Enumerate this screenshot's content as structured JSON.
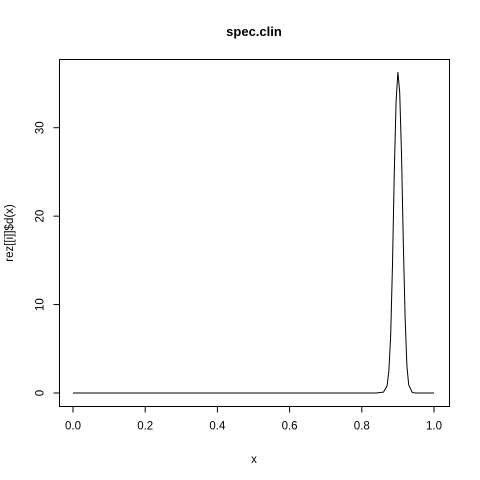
{
  "chart_data": {
    "type": "line",
    "title": "spec.clin",
    "xlabel": "x",
    "ylabel": "rez[[i]]$d(x)",
    "xlim": [
      0.0,
      1.0
    ],
    "ylim": [
      0,
      36.3
    ],
    "xticks": [
      {
        "value": 0.0,
        "label": "0.0"
      },
      {
        "value": 0.2,
        "label": "0.2"
      },
      {
        "value": 0.4,
        "label": "0.4"
      },
      {
        "value": 0.6,
        "label": "0.6"
      },
      {
        "value": 0.8,
        "label": "0.8"
      },
      {
        "value": 1.0,
        "label": "1.0"
      }
    ],
    "yticks": [
      {
        "value": 0,
        "label": "0"
      },
      {
        "value": 10,
        "label": "10"
      },
      {
        "value": 20,
        "label": "20"
      },
      {
        "value": 30,
        "label": "30"
      }
    ],
    "grid": false,
    "legend": "none",
    "series": [
      {
        "x": [
          0.0,
          0.1,
          0.2,
          0.3,
          0.4,
          0.5,
          0.6,
          0.7,
          0.8,
          0.84,
          0.86,
          0.87,
          0.875,
          0.88,
          0.885,
          0.89,
          0.895,
          0.9,
          0.905,
          0.91,
          0.915,
          0.92,
          0.925,
          0.93,
          0.94,
          0.95,
          1.0
        ],
        "y": [
          0,
          0,
          0,
          0,
          0,
          0,
          0,
          0,
          0,
          0,
          0.1,
          0.8,
          2.5,
          6.5,
          14.5,
          25,
          33,
          36.3,
          34,
          27,
          17,
          8.5,
          3,
          0.9,
          0.05,
          0,
          0
        ]
      }
    ]
  }
}
